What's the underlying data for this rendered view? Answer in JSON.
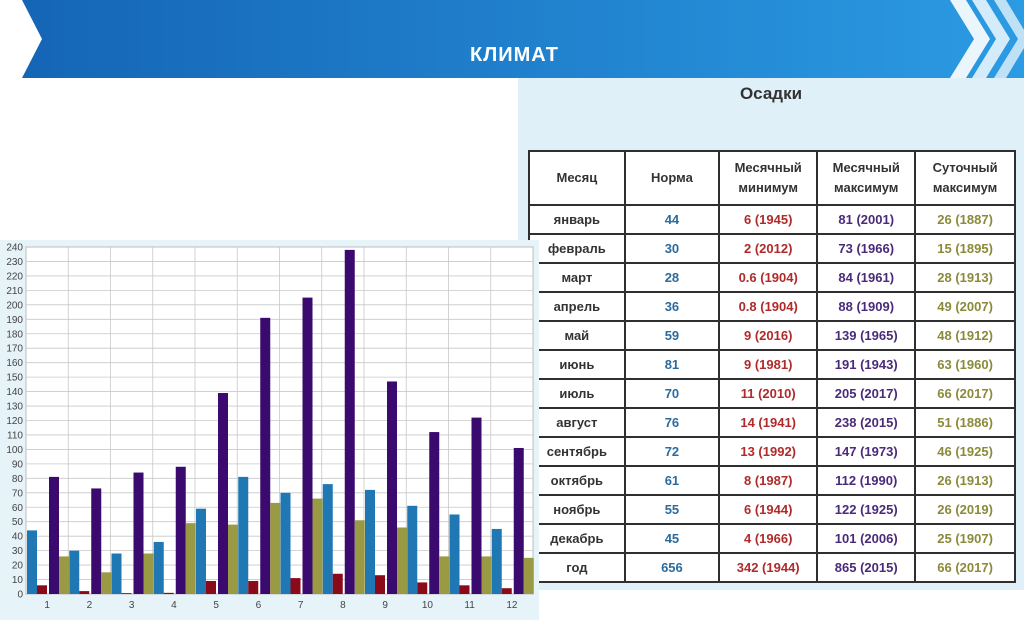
{
  "header": {
    "title": "КЛИМАТ",
    "colors": {
      "banner_dark": "#1565b6",
      "banner_light": "#2b9be3"
    }
  },
  "table": {
    "title": "Осадки",
    "headers": [
      {
        "line1": "Месяц",
        "line2": ""
      },
      {
        "line1": "Норма",
        "line2": ""
      },
      {
        "line1": "Месячный",
        "line2": "минимум"
      },
      {
        "line1": "Месячный",
        "line2": "максимум"
      },
      {
        "line1": "Суточный",
        "line2": "максимум"
      }
    ],
    "rows": [
      {
        "month": "январь",
        "norm": "44",
        "min": "6 (1945)",
        "max": "81 (2001)",
        "daily": "26 (1887)"
      },
      {
        "month": "февраль",
        "norm": "30",
        "min": "2 (2012)",
        "max": "73 (1966)",
        "daily": "15 (1895)"
      },
      {
        "month": "март",
        "norm": "28",
        "min": "0.6 (1904)",
        "max": "84 (1961)",
        "daily": "28 (1913)"
      },
      {
        "month": "апрель",
        "norm": "36",
        "min": "0.8 (1904)",
        "max": "88 (1909)",
        "daily": "49 (2007)"
      },
      {
        "month": "май",
        "norm": "59",
        "min": "9 (2016)",
        "max": "139 (1965)",
        "daily": "48 (1912)"
      },
      {
        "month": "июнь",
        "norm": "81",
        "min": "9 (1981)",
        "max": "191 (1943)",
        "daily": "63 (1960)"
      },
      {
        "month": "июль",
        "norm": "70",
        "min": "11 (2010)",
        "max": "205 (2017)",
        "daily": "66 (2017)"
      },
      {
        "month": "август",
        "norm": "76",
        "min": "14 (1941)",
        "max": "238 (2015)",
        "daily": "51 (1886)"
      },
      {
        "month": "сентябрь",
        "norm": "72",
        "min": "13 (1992)",
        "max": "147 (1973)",
        "daily": "46 (1925)"
      },
      {
        "month": "октябрь",
        "norm": "61",
        "min": "8 (1987)",
        "max": "112 (1990)",
        "daily": "26 (1913)"
      },
      {
        "month": "ноябрь",
        "norm": "55",
        "min": "6 (1944)",
        "max": "122 (1925)",
        "daily": "26 (2019)"
      },
      {
        "month": "декабрь",
        "norm": "45",
        "min": "4 (1966)",
        "max": "101 (2006)",
        "daily": "25 (1907)"
      },
      {
        "month": "год",
        "norm": "656",
        "min": "342 (1944)",
        "max": "865 (2015)",
        "daily": "66 (2017)"
      }
    ]
  },
  "chart_data": {
    "type": "bar",
    "categories": [
      "1",
      "2",
      "3",
      "4",
      "5",
      "6",
      "7",
      "8",
      "9",
      "10",
      "11",
      "12"
    ],
    "ylim": [
      0,
      240
    ],
    "ytick_step": 10,
    "grid": true,
    "series": [
      {
        "values": [
          44,
          30,
          28,
          36,
          59,
          81,
          70,
          76,
          72,
          61,
          55,
          45
        ],
        "color": "#1f77b4"
      },
      {
        "values": [
          6,
          2,
          0.6,
          0.8,
          9,
          9,
          11,
          14,
          13,
          8,
          6,
          4
        ],
        "color": "#8b0a1a"
      },
      {
        "values": [
          81,
          73,
          84,
          88,
          139,
          191,
          205,
          238,
          147,
          112,
          122,
          101
        ],
        "color": "#3a0a6e"
      },
      {
        "values": [
          26,
          15,
          28,
          49,
          48,
          63,
          66,
          51,
          46,
          26,
          26,
          25
        ],
        "color": "#9a9a45"
      }
    ]
  }
}
